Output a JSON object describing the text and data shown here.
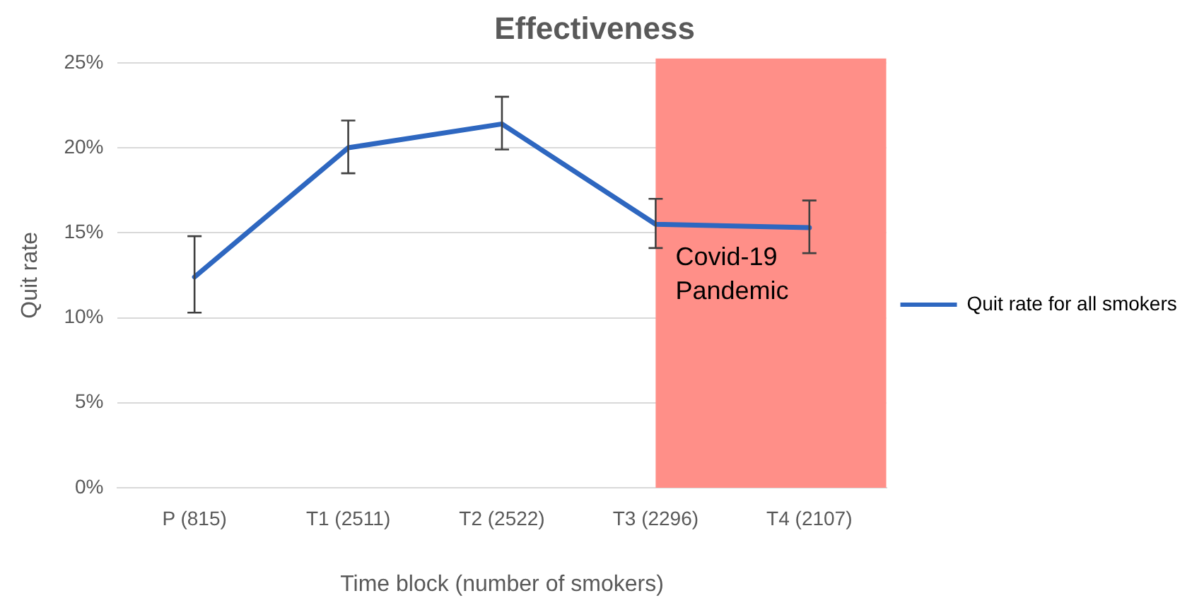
{
  "chart_data": {
    "type": "line",
    "title": "Effectiveness",
    "xlabel": "Time block (number of smokers)",
    "ylabel": "Quit rate",
    "categories": [
      "P (815)",
      "T1 (2511)",
      "T2 (2522)",
      "T3 (2296)",
      "T4 (2107)"
    ],
    "series": [
      {
        "name": "Quit rate for all smokers",
        "color": "#2e67c0",
        "values": [
          12.4,
          20.0,
          21.4,
          15.5,
          15.3
        ],
        "errors": [
          [
            10.3,
            14.8
          ],
          [
            18.5,
            21.6
          ],
          [
            19.9,
            23.0
          ],
          [
            14.1,
            17.0
          ],
          [
            13.8,
            16.9
          ]
        ]
      }
    ],
    "ylim": [
      0,
      25
    ],
    "yticks": [
      {
        "value": 0,
        "label": "0%"
      },
      {
        "value": 5,
        "label": "5%"
      },
      {
        "value": 10,
        "label": "10%"
      },
      {
        "value": 15,
        "label": "15%"
      },
      {
        "value": 20,
        "label": "20%"
      },
      {
        "value": 25,
        "label": "25%"
      }
    ],
    "bands": [
      {
        "axis": "x",
        "from": "T3 (2296)",
        "to": "T4 (2107)",
        "label": "Covid-19 Pandemic",
        "color": "#ff8f88"
      }
    ],
    "grid": "y",
    "legend": "right",
    "marker": "none",
    "line_style": "solid"
  }
}
